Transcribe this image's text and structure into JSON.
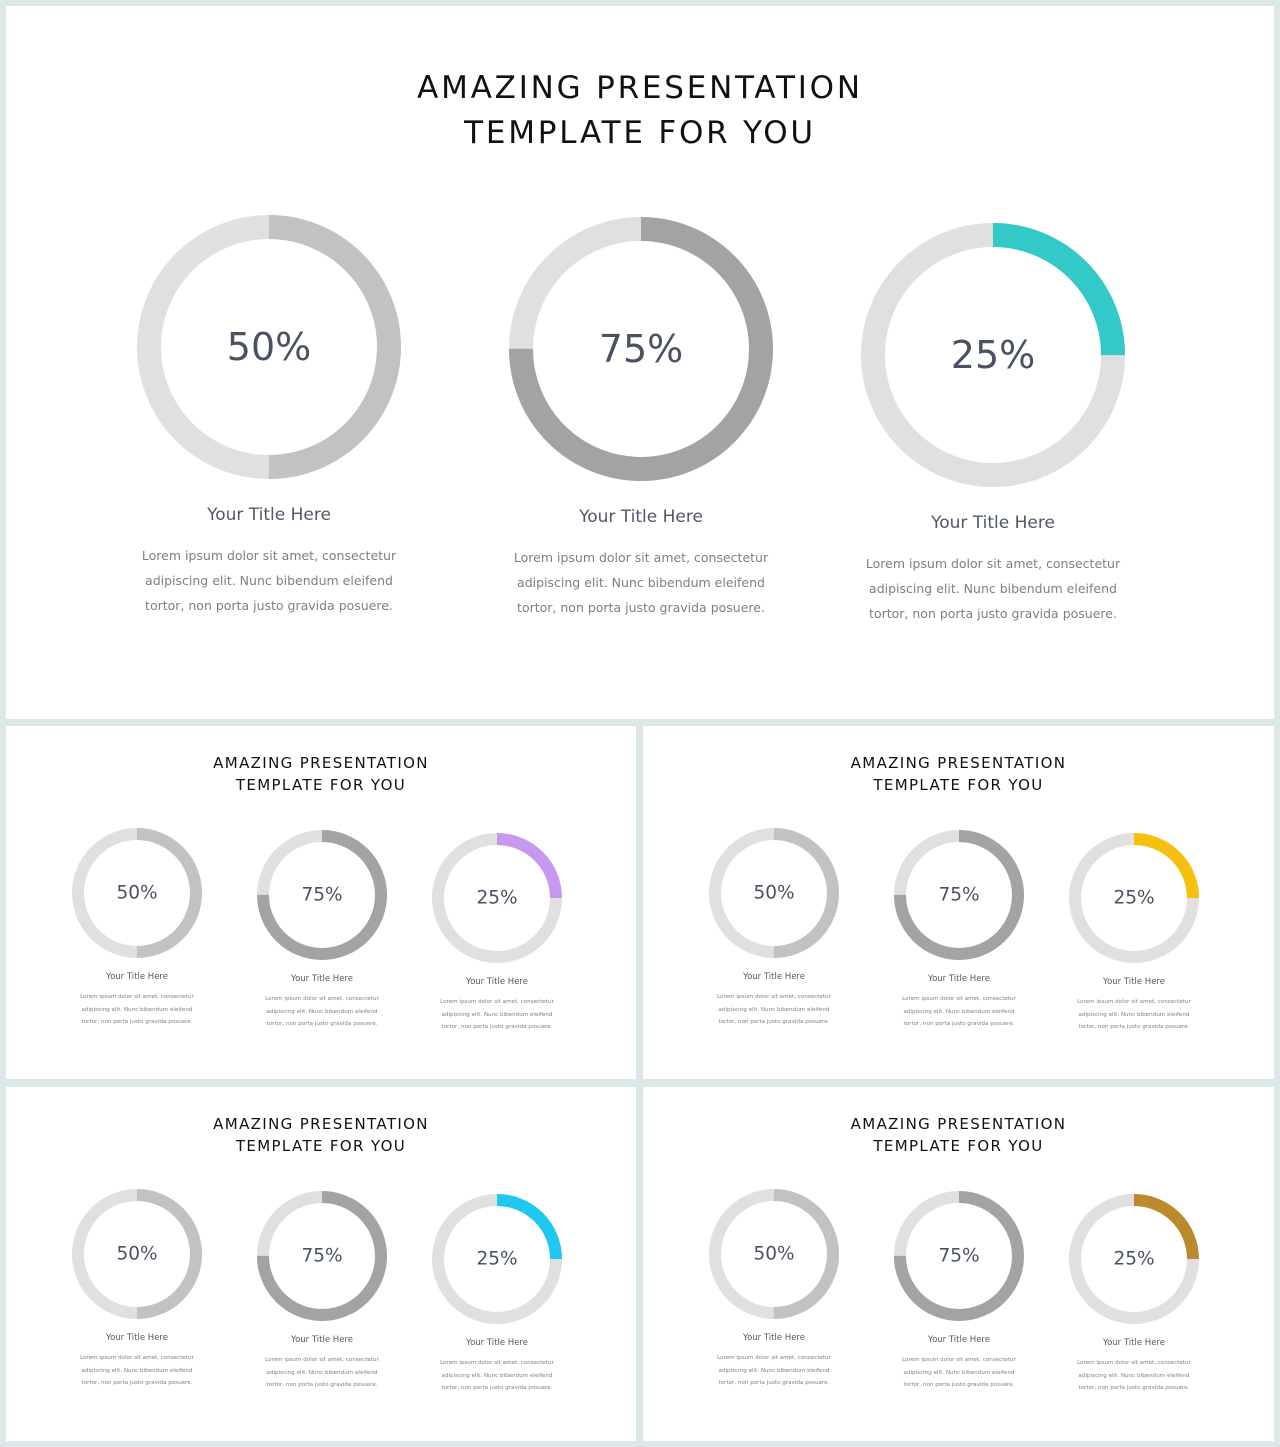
{
  "background_color": "#dce8e8",
  "ring_track_color": "#e0e0e0",
  "slides": [
    {
      "title_line1": "AMAZING PRESENTATION",
      "title_line2": "TEMPLATE FOR YOU",
      "cards": [
        {
          "value": 50,
          "label": "50%",
          "color": "#c2c2c2",
          "title": "Your Title Here",
          "body": [
            "Lorem ipsum dolor sit amet, consectetur",
            "adipiscing elit. Nunc bibendum eleifend",
            "tortor, non porta justo gravida posuere."
          ]
        },
        {
          "value": 75,
          "label": "75%",
          "color": "#a3a3a3",
          "title": "Your Title Here",
          "body": [
            "Lorem ipsum dolor sit amet, consectetur",
            "adipiscing elit. Nunc bibendum eleifend",
            "tortor, non porta justo gravida posuere."
          ]
        },
        {
          "value": 25,
          "label": "25%",
          "color": "#33c9c9",
          "title": "Your Title Here",
          "body": [
            "Lorem ipsum dolor sit amet, consectetur",
            "adipiscing elit. Nunc bibendum eleifend",
            "tortor, non porta justo gravida posuere."
          ]
        }
      ]
    },
    {
      "title_line1": "AMAZING PRESENTATION",
      "title_line2": "TEMPLATE FOR YOU",
      "cards": [
        {
          "value": 50,
          "label": "50%",
          "color": "#c2c2c2",
          "title": "Your Title Here",
          "body": [
            "Lorem ipsum dolor sit amet, consectetur",
            "adipiscing elit. Nunc bibendum eleifend",
            "tortor, non porta justo gravida posuere."
          ]
        },
        {
          "value": 75,
          "label": "75%",
          "color": "#a3a3a3",
          "title": "Your Title Here",
          "body": [
            "Lorem ipsum dolor sit amet, consectetur",
            "adipiscing elit. Nunc bibendum eleifend",
            "tortor, non porta justo gravida posuere."
          ]
        },
        {
          "value": 25,
          "label": "25%",
          "color": "#c898f0",
          "title": "Your Title Here",
          "body": [
            "Lorem ipsum dolor sit amet, consectetur",
            "adipiscing elit. Nunc bibendum eleifend",
            "tortor, non porta justo gravida posuere."
          ]
        }
      ]
    },
    {
      "title_line1": "AMAZING PRESENTATION",
      "title_line2": "TEMPLATE FOR YOU",
      "cards": [
        {
          "value": 50,
          "label": "50%",
          "color": "#c2c2c2",
          "title": "Your Title Here",
          "body": [
            "Lorem ipsum dolor sit amet, consectetur",
            "adipiscing elit. Nunc bibendum eleifend",
            "tortor, non porta justo gravida posuere."
          ]
        },
        {
          "value": 75,
          "label": "75%",
          "color": "#a3a3a3",
          "title": "Your Title Here",
          "body": [
            "Lorem ipsum dolor sit amet, consectetur",
            "adipiscing elit. Nunc bibendum eleifend",
            "tortor, non porta justo gravida posuere."
          ]
        },
        {
          "value": 25,
          "label": "25%",
          "color": "#f5c010",
          "title": "Your Title Here",
          "body": [
            "Lorem ipsum dolor sit amet, consectetur",
            "adipiscing elit. Nunc bibendum eleifend",
            "tortor, non porta justo gravida posuere."
          ]
        }
      ]
    },
    {
      "title_line1": "AMAZING PRESENTATION",
      "title_line2": "TEMPLATE FOR YOU",
      "cards": [
        {
          "value": 50,
          "label": "50%",
          "color": "#c2c2c2",
          "title": "Your Title Here",
          "body": [
            "Lorem ipsum dolor sit amet, consectetur",
            "adipiscing elit. Nunc bibendum eleifend",
            "tortor, non porta justo gravida posuere."
          ]
        },
        {
          "value": 75,
          "label": "75%",
          "color": "#a3a3a3",
          "title": "Your Title Here",
          "body": [
            "Lorem ipsum dolor sit amet, consectetur",
            "adipiscing elit. Nunc bibendum eleifend",
            "tortor, non porta justo gravida posuere."
          ]
        },
        {
          "value": 25,
          "label": "25%",
          "color": "#1ec8ee",
          "title": "Your Title Here",
          "body": [
            "Lorem ipsum dolor sit amet, consectetur",
            "adipiscing elit. Nunc bibendum eleifend",
            "tortor, non porta justo gravida posuere."
          ]
        }
      ]
    },
    {
      "title_line1": "AMAZING PRESENTATION",
      "title_line2": "TEMPLATE FOR YOU",
      "cards": [
        {
          "value": 50,
          "label": "50%",
          "color": "#c2c2c2",
          "title": "Your Title Here",
          "body": [
            "Lorem ipsum dolor sit amet, consectetur",
            "adipiscing elit. Nunc bibendum eleifend",
            "tortor, non porta justo gravida posuere."
          ]
        },
        {
          "value": 75,
          "label": "75%",
          "color": "#a3a3a3",
          "title": "Your Title Here",
          "body": [
            "Lorem ipsum dolor sit amet, consectetur",
            "adipiscing elit. Nunc bibendum eleifend",
            "tortor, non porta justo gravida posuere."
          ]
        },
        {
          "value": 25,
          "label": "25%",
          "color": "#bb8a2c",
          "title": "Your Title Here",
          "body": [
            "Lorem ipsum dolor sit amet, consectetur",
            "adipiscing elit. Nunc bibendum eleifend",
            "tortor, non porta justo gravida posuere."
          ]
        }
      ]
    }
  ]
}
